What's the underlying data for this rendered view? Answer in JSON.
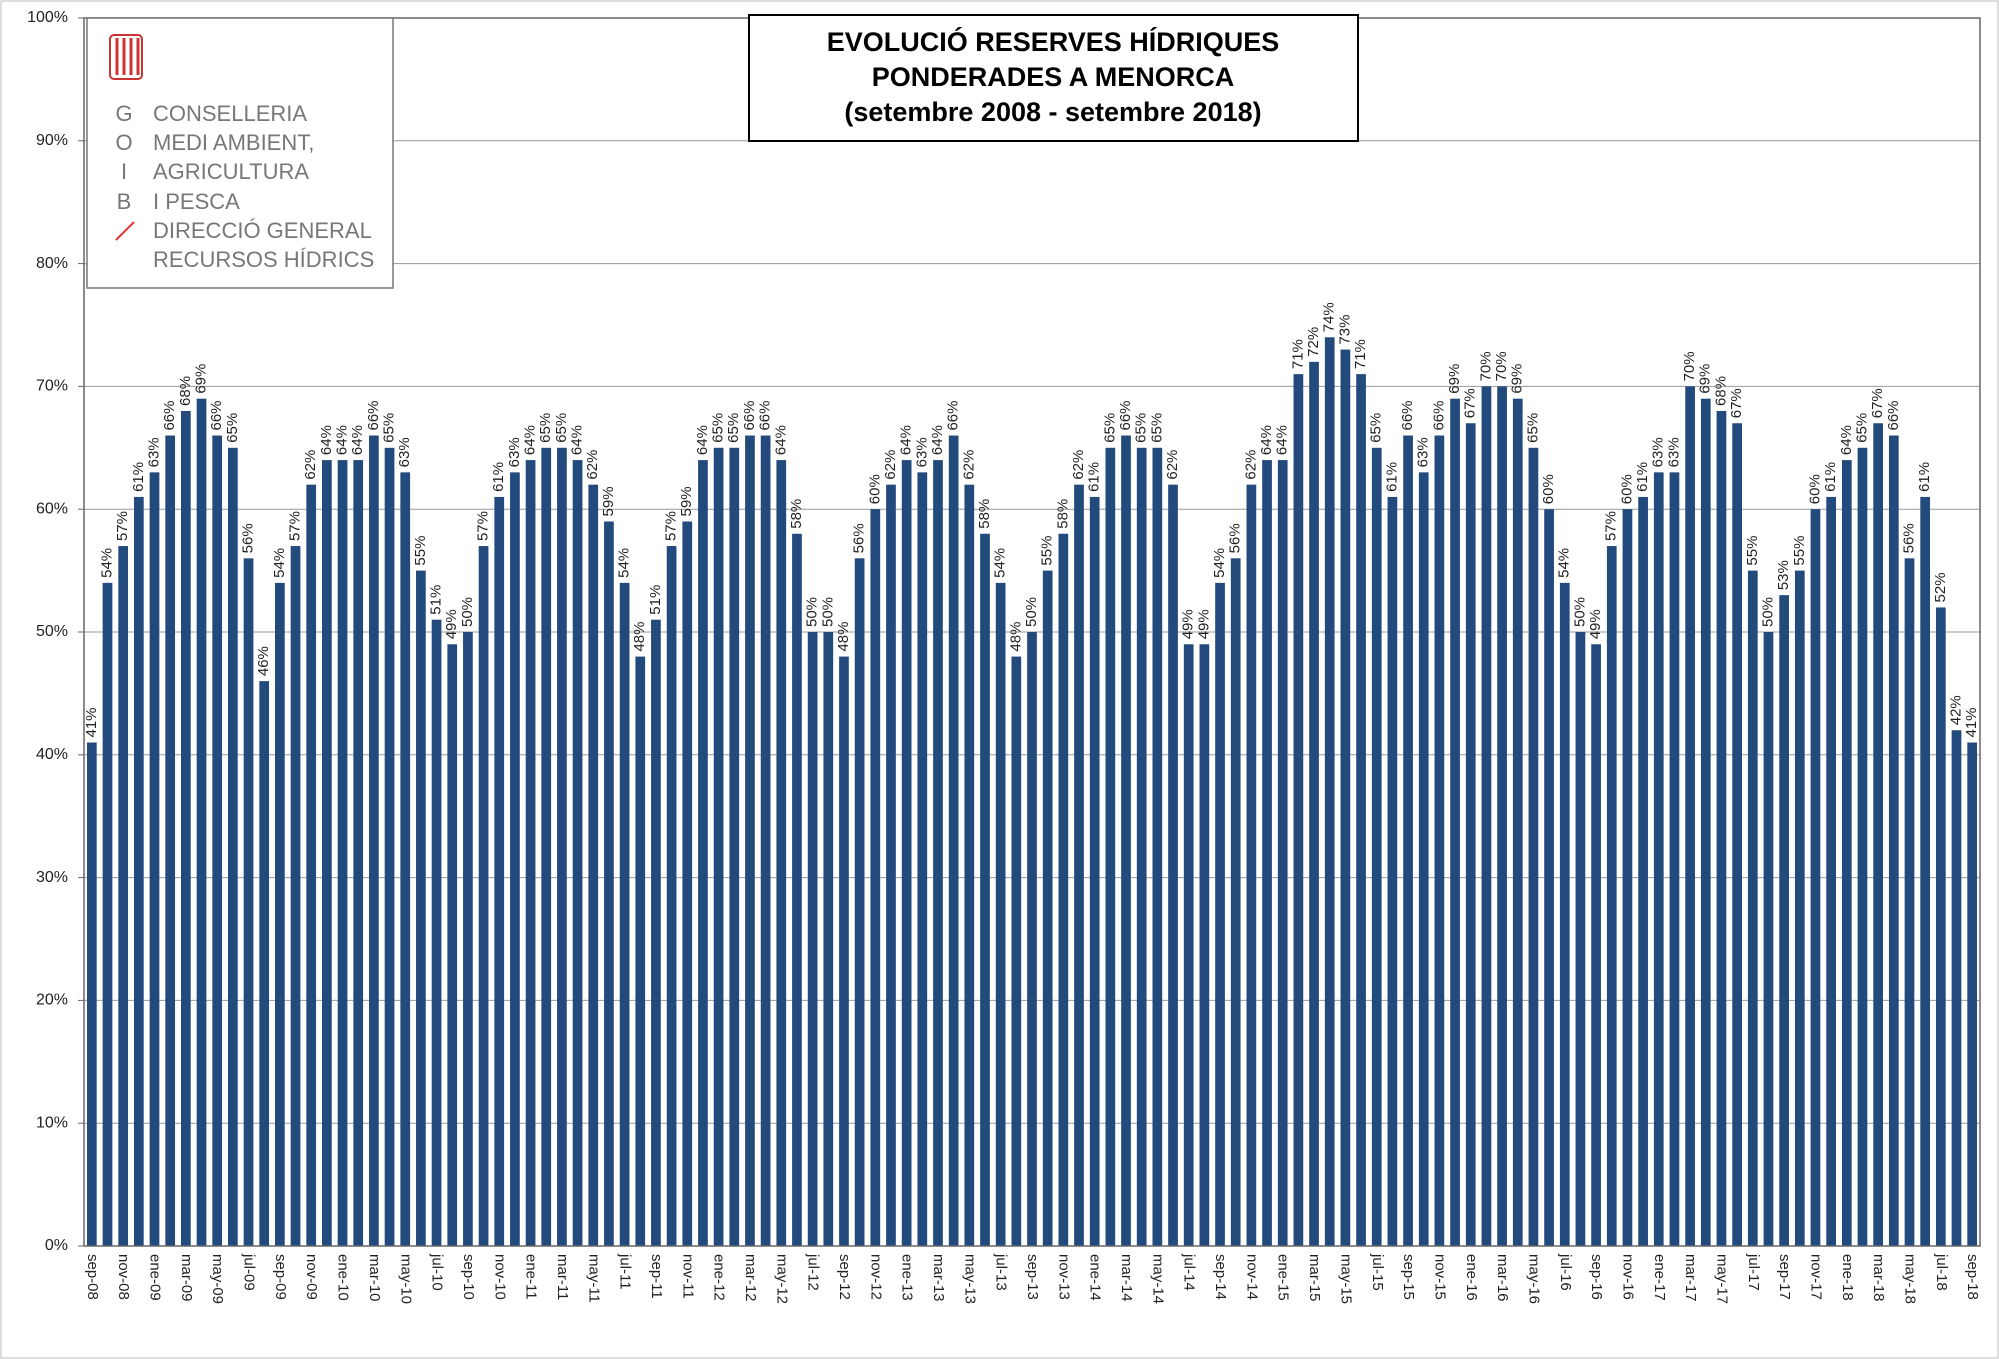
{
  "chart_data": {
    "type": "bar",
    "title": [
      "EVOLUCIÓ RESERVES HÍDRIQUES",
      "PONDERADES A MENORCA"
    ],
    "subtitle": "(setembre 2008 - setembre 2018)",
    "logo": {
      "letters": [
        "G",
        "O",
        "I",
        "B"
      ],
      "lines": [
        "CONSELLERIA",
        "MEDI AMBIENT,",
        "AGRICULTURA",
        "I PESCA",
        "DIRECCIÓ GENERAL",
        "RECURSOS HÍDRICS"
      ]
    },
    "color": "#234a7d",
    "grid": true,
    "ylim": [
      0,
      100
    ],
    "yticks": [
      {
        "value": 0,
        "label": "0%"
      },
      {
        "value": 10,
        "label": "10%"
      },
      {
        "value": 20,
        "label": "20%"
      },
      {
        "value": 30,
        "label": "30%"
      },
      {
        "value": 40,
        "label": "40%"
      },
      {
        "value": 50,
        "label": "50%"
      },
      {
        "value": 60,
        "label": "60%"
      },
      {
        "value": 70,
        "label": "70%"
      },
      {
        "value": 80,
        "label": "80%"
      },
      {
        "value": 90,
        "label": "90%"
      },
      {
        "value": 100,
        "label": "100%"
      }
    ],
    "categories": [
      "sep-08",
      null,
      "nov-08",
      null,
      "ene-09",
      null,
      "mar-09",
      null,
      "may-09",
      null,
      "jul-09",
      null,
      "sep-09",
      null,
      "nov-09",
      null,
      "ene-10",
      null,
      "mar-10",
      null,
      "may-10",
      null,
      "jul-10",
      null,
      "sep-10",
      null,
      "nov-10",
      null,
      "ene-11",
      null,
      "mar-11",
      null,
      "may-11",
      null,
      "jul-11",
      null,
      "sep-11",
      null,
      "nov-11",
      null,
      "ene-12",
      null,
      "mar-12",
      null,
      "may-12",
      null,
      "jul-12",
      null,
      "sep-12",
      null,
      "nov-12",
      null,
      "ene-13",
      null,
      "mar-13",
      null,
      "may-13",
      null,
      "jul-13",
      null,
      "sep-13",
      null,
      "nov-13",
      null,
      "ene-14",
      null,
      "mar-14",
      null,
      "may-14",
      null,
      "jul-14",
      null,
      "sep-14",
      null,
      "nov-14",
      null,
      "ene-15",
      null,
      "mar-15",
      null,
      "may-15",
      null,
      "jul-15",
      null,
      "sep-15",
      null,
      "nov-15",
      null,
      "ene-16",
      null,
      "mar-16",
      null,
      "may-16",
      null,
      "jul-16",
      null,
      "sep-16",
      null,
      "nov-16",
      null,
      "ene-17",
      null,
      "mar-17",
      null,
      "may-17",
      null,
      "jul-17",
      null,
      "sep-17",
      null,
      "nov-17",
      null,
      "ene-18",
      null,
      "mar-18",
      null,
      "may-18",
      null,
      "jul-18",
      null,
      "sep-18"
    ],
    "values": [
      41,
      54,
      57,
      61,
      63,
      66,
      68,
      69,
      66,
      65,
      56,
      46,
      54,
      57,
      62,
      64,
      64,
      64,
      66,
      65,
      63,
      55,
      51,
      49,
      50,
      57,
      61,
      63,
      64,
      65,
      65,
      64,
      62,
      59,
      54,
      48,
      51,
      57,
      59,
      64,
      65,
      65,
      66,
      66,
      64,
      58,
      50,
      50,
      48,
      56,
      60,
      62,
      64,
      63,
      64,
      66,
      62,
      58,
      54,
      48,
      50,
      55,
      58,
      62,
      61,
      65,
      66,
      65,
      65,
      62,
      49,
      49,
      54,
      56,
      62,
      64,
      64,
      71,
      72,
      74,
      73,
      71,
      65,
      61,
      66,
      63,
      66,
      69,
      67,
      70,
      70,
      69,
      65,
      60,
      54,
      50,
      49,
      57,
      60,
      61,
      63,
      63,
      70,
      69,
      68,
      67,
      55,
      50,
      53,
      55,
      60,
      61,
      64,
      65,
      67,
      66,
      56,
      61,
      52,
      42,
      41
    ],
    "value_labels": [
      "41%",
      "54%",
      "57%",
      "61%",
      "63%",
      "66%",
      "68%",
      "69%",
      "66%",
      "65%",
      "56%",
      "46%",
      "54%",
      "57%",
      "62%",
      "64%",
      "64%",
      "64%",
      "66%",
      "65%",
      "63%",
      "55%",
      "51%",
      "49%",
      "50%",
      "57%",
      "61%",
      "63%",
      "64%",
      "65%",
      "65%",
      "64%",
      "62%",
      "59%",
      "54%",
      "48%",
      "51%",
      "57%",
      "59%",
      "64%",
      "65%",
      "65%",
      "66%",
      "66%",
      "64%",
      "58%",
      "50%",
      "50%",
      "48%",
      "56%",
      "60%",
      "62%",
      "64%",
      "63%",
      "64%",
      "66%",
      "62%",
      "58%",
      "54%",
      "48%",
      "50%",
      "55%",
      "58%",
      "62%",
      "61%",
      "65%",
      "66%",
      "65%",
      "65%",
      "62%",
      "49%",
      "49%",
      "54%",
      "56%",
      "62%",
      "64%",
      "64%",
      "71%",
      "72%",
      "74%",
      "73%",
      "71%",
      "65%",
      "61%",
      "66%",
      "63%",
      "66%",
      "69%",
      "67%",
      "70%",
      "70%",
      "69%",
      "65%",
      "60%",
      "54%",
      "50%",
      "49%",
      "57%",
      "60%",
      "61%",
      "63%",
      "63%",
      "70%",
      "69%",
      "68%",
      "67%",
      "55%",
      "50%",
      "53%",
      "55%",
      "60%",
      "61%",
      "64%",
      "65%",
      "67%",
      "66%",
      "56%",
      "61%",
      "52%",
      "42%",
      "41%"
    ]
  }
}
